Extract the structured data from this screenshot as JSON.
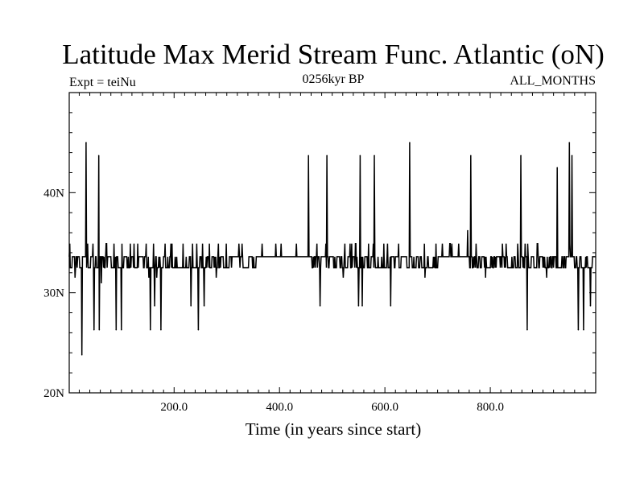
{
  "chart_data": {
    "type": "line",
    "title": "Latitude Max Merid Stream Func. Atlantic (oN)",
    "subtitle_left": "Expt = teiNu",
    "subtitle_center": "0256kyr BP",
    "subtitle_right": "ALL_MONTHS",
    "xlabel": "Time (in years since start)",
    "ylabel": "",
    "xlim": [
      1,
      1000
    ],
    "ylim": [
      20,
      50
    ],
    "x_ticks": [
      {
        "value": 200,
        "label": "200.0"
      },
      {
        "value": 400,
        "label": "400.0"
      },
      {
        "value": 600,
        "label": "600.0"
      },
      {
        "value": 800,
        "label": "800.0"
      }
    ],
    "y_ticks": [
      {
        "value": 20,
        "label": "20N"
      },
      {
        "value": 30,
        "label": "30N"
      },
      {
        "value": 40,
        "label": "40N"
      }
    ],
    "grid": false,
    "series": [
      {
        "name": "Max Merid Stream Func latitude",
        "color": "#000000",
        "baseline_segments": [
          {
            "from": 1,
            "to": 240,
            "levels": [
              32.5,
              33.6
            ]
          },
          {
            "from": 240,
            "to": 300,
            "levels": [
              32.5,
              33.6
            ]
          },
          {
            "from": 300,
            "to": 360,
            "levels": [
              33.6,
              32.5
            ]
          },
          {
            "from": 360,
            "to": 460,
            "levels": [
              33.6
            ]
          },
          {
            "from": 460,
            "to": 700,
            "levels": [
              32.5,
              33.6
            ]
          },
          {
            "from": 700,
            "to": 760,
            "levels": [
              33.6
            ]
          },
          {
            "from": 760,
            "to": 1000,
            "levels": [
              33.6,
              32.5
            ]
          }
        ],
        "small_wiggles": [
          34.9,
          31.5
        ],
        "spikes": [
          {
            "x": 25,
            "y": 23.8
          },
          {
            "x": 33,
            "y": 45.0
          },
          {
            "x": 48,
            "y": 26.3
          },
          {
            "x": 57,
            "y": 43.7
          },
          {
            "x": 58,
            "y": 26.3
          },
          {
            "x": 62,
            "y": 31.0
          },
          {
            "x": 90,
            "y": 26.3
          },
          {
            "x": 100,
            "y": 26.3
          },
          {
            "x": 155,
            "y": 26.3
          },
          {
            "x": 163,
            "y": 28.7
          },
          {
            "x": 175,
            "y": 26.3
          },
          {
            "x": 232,
            "y": 28.7
          },
          {
            "x": 246,
            "y": 26.3
          },
          {
            "x": 257,
            "y": 28.7
          },
          {
            "x": 455,
            "y": 43.7
          },
          {
            "x": 477,
            "y": 28.7
          },
          {
            "x": 490,
            "y": 43.7
          },
          {
            "x": 550,
            "y": 28.7
          },
          {
            "x": 553,
            "y": 43.7
          },
          {
            "x": 557,
            "y": 28.7
          },
          {
            "x": 580,
            "y": 43.7
          },
          {
            "x": 611,
            "y": 28.7
          },
          {
            "x": 647,
            "y": 45.0
          },
          {
            "x": 757,
            "y": 36.2
          },
          {
            "x": 763,
            "y": 43.7
          },
          {
            "x": 858,
            "y": 43.7
          },
          {
            "x": 870,
            "y": 26.3
          },
          {
            "x": 927,
            "y": 42.5
          },
          {
            "x": 950,
            "y": 45.0
          },
          {
            "x": 955,
            "y": 43.7
          },
          {
            "x": 967,
            "y": 26.3
          },
          {
            "x": 977,
            "y": 26.3
          },
          {
            "x": 990,
            "y": 28.7
          }
        ]
      }
    ]
  }
}
